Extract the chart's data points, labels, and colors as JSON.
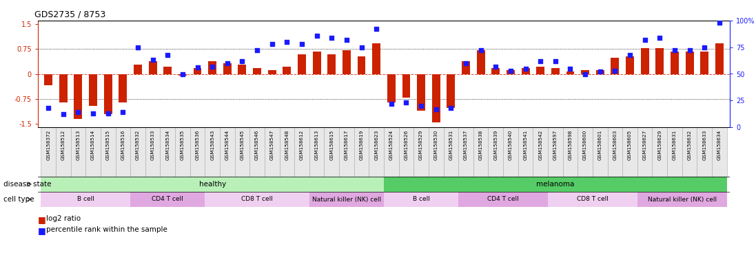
{
  "title": "GDS2735 / 8753",
  "samples": [
    "GSM158372",
    "GSM158512",
    "GSM158513",
    "GSM158514",
    "GSM158515",
    "GSM158516",
    "GSM158532",
    "GSM158533",
    "GSM158534",
    "GSM158535",
    "GSM158536",
    "GSM158543",
    "GSM158544",
    "GSM158545",
    "GSM158546",
    "GSM158547",
    "GSM158548",
    "GSM158612",
    "GSM158613",
    "GSM158615",
    "GSM158617",
    "GSM158619",
    "GSM158623",
    "GSM158524",
    "GSM158526",
    "GSM158529",
    "GSM158530",
    "GSM158531",
    "GSM158537",
    "GSM158538",
    "GSM158539",
    "GSM158540",
    "GSM158541",
    "GSM158542",
    "GSM158597",
    "GSM158598",
    "GSM158600",
    "GSM158601",
    "GSM158603",
    "GSM158605",
    "GSM158627",
    "GSM158629",
    "GSM158631",
    "GSM158632",
    "GSM158633",
    "GSM158634"
  ],
  "log2_ratio": [
    -0.35,
    -0.85,
    -1.35,
    -0.95,
    -1.2,
    -0.85,
    0.28,
    0.38,
    0.22,
    -0.05,
    0.18,
    0.38,
    0.32,
    0.28,
    0.18,
    0.12,
    0.22,
    0.58,
    0.68,
    0.58,
    0.72,
    0.52,
    0.92,
    -0.85,
    -0.72,
    -1.1,
    -1.45,
    -1.02,
    0.38,
    0.72,
    0.18,
    0.12,
    0.18,
    0.22,
    0.18,
    0.08,
    0.12,
    0.12,
    0.48,
    0.52,
    0.78,
    0.78,
    0.68,
    0.68,
    0.68,
    0.92
  ],
  "percentile_rank": [
    18,
    12,
    14,
    13,
    13,
    14,
    75,
    63,
    68,
    50,
    56,
    57,
    60,
    62,
    72,
    78,
    80,
    78,
    86,
    84,
    82,
    75,
    92,
    22,
    23,
    20,
    17,
    18,
    60,
    72,
    57,
    53,
    55,
    62,
    62,
    55,
    50,
    52,
    53,
    68,
    82,
    84,
    72,
    72,
    75,
    98
  ],
  "disease_state_groups": [
    {
      "label": "healthy",
      "start": 0,
      "end": 23,
      "color": "#b8f0b8"
    },
    {
      "label": "melanoma",
      "start": 23,
      "end": 46,
      "color": "#55cc66"
    }
  ],
  "cell_type_groups": [
    {
      "label": "B cell",
      "start": 0,
      "end": 6,
      "color": "#f0d0f0"
    },
    {
      "label": "CD4 T cell",
      "start": 6,
      "end": 11,
      "color": "#e0a8e0"
    },
    {
      "label": "CD8 T cell",
      "start": 11,
      "end": 18,
      "color": "#f0d0f0"
    },
    {
      "label": "Natural killer (NK) cell",
      "start": 18,
      "end": 23,
      "color": "#e0a8e0"
    },
    {
      "label": "B cell",
      "start": 23,
      "end": 28,
      "color": "#f0d0f0"
    },
    {
      "label": "CD4 T cell",
      "start": 28,
      "end": 34,
      "color": "#e0a8e0"
    },
    {
      "label": "CD8 T cell",
      "start": 34,
      "end": 40,
      "color": "#f0d0f0"
    },
    {
      "label": "Natural killer (NK) cell",
      "start": 40,
      "end": 46,
      "color": "#e0a8e0"
    }
  ],
  "ylim_left": [
    -1.6,
    1.6
  ],
  "ylim_right": [
    0,
    100
  ],
  "bar_color": "#cc2200",
  "dot_color": "#1a1aff",
  "yticks_left": [
    -1.5,
    -0.75,
    0,
    0.75,
    1.5
  ],
  "yticks_right": [
    0,
    25,
    50,
    75,
    100
  ],
  "tick_label_fontsize": 5.5,
  "title_fontsize": 9,
  "label_fontsize": 7.5
}
